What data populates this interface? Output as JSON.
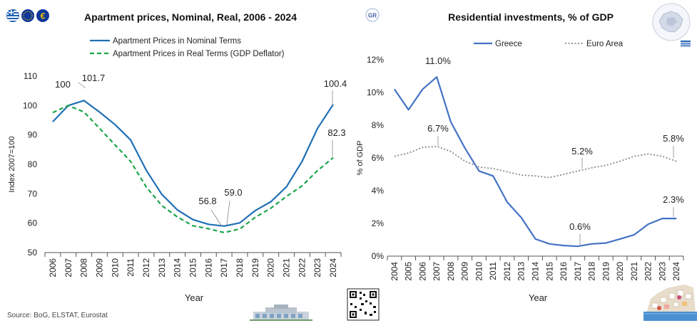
{
  "left_title": "Apartment prices, Nominal, Real, 2006 - 2024",
  "right_title": "Residential investments, % of GDP",
  "right_badge": "GR",
  "source": "Source: BoG, ELSTAT, Eurostat",
  "logos": [
    "greece-flag-circle-icon",
    "ecb-logo-icon",
    "euro-logo-icon"
  ],
  "colors": {
    "blue": "#1f6fb5",
    "green": "#1aa54a",
    "gray": "#8a8a8a",
    "line_blue": "#4472c4",
    "title": "#111111"
  },
  "chart_data": [
    {
      "type": "line",
      "title": "Apartment prices, Nominal, Real, 2006 - 2024",
      "xlabel": "Year",
      "ylabel": "Index 2007=100",
      "ylim": [
        50,
        110
      ],
      "yticks": [
        "50",
        "60",
        "70",
        "80",
        "90",
        "100",
        "110"
      ],
      "categories": [
        "2006",
        "2007",
        "2008",
        "2009",
        "2010",
        "2011",
        "2012",
        "2013",
        "2014",
        "2015",
        "2016",
        "2017",
        "2018",
        "2019",
        "2020",
        "2021",
        "2022",
        "2023",
        "2024"
      ],
      "legend_position": "top-center",
      "grid": false,
      "series": [
        {
          "name": "Apartment Prices in Nominal Terms",
          "style": "solid",
          "color": "#1f6fb5",
          "values": [
            94.5,
            100,
            101.7,
            97.8,
            93.5,
            88.3,
            78.0,
            69.8,
            64.5,
            61.2,
            59.6,
            59.0,
            60.1,
            64.3,
            67.3,
            72.4,
            81.0,
            92.3,
            100.4
          ]
        },
        {
          "name": "Apartment Prices in Real Terms (GDP Deflator)",
          "style": "dashed",
          "color": "#1aa54a",
          "values": [
            97.6,
            100,
            97.8,
            92.3,
            86.6,
            81.0,
            72.3,
            66.0,
            62.1,
            59.1,
            58.1,
            56.8,
            58.0,
            62.0,
            65.1,
            69.1,
            72.7,
            77.9,
            82.3
          ]
        }
      ],
      "annotations": [
        {
          "text": "100",
          "x": "2007",
          "y": 100
        },
        {
          "text": "101.7",
          "x": "2008",
          "y": 101.7
        },
        {
          "text": "56.8",
          "x": "2017",
          "y": 56.8
        },
        {
          "text": "59.0",
          "x": "2017",
          "y": 59.0
        },
        {
          "text": "100.4",
          "x": "2024",
          "y": 100.4
        },
        {
          "text": "82.3",
          "x": "2024",
          "y": 82.3
        }
      ]
    },
    {
      "type": "line",
      "title": "Residential investments, % of GDP",
      "xlabel": "Year",
      "ylabel": "% of GDP",
      "ylim": [
        0,
        12
      ],
      "yticks": [
        "0%",
        "2%",
        "4%",
        "6%",
        "8%",
        "10%",
        "12%"
      ],
      "categories": [
        "2004",
        "2005",
        "2006",
        "2007",
        "2008",
        "2009",
        "2010",
        "2011",
        "2012",
        "2013",
        "2014",
        "2015",
        "2016",
        "2017",
        "2018",
        "2019",
        "2020",
        "2021",
        "2022",
        "2023",
        "2024"
      ],
      "legend_position": "top-center",
      "grid": false,
      "series": [
        {
          "name": "Greece",
          "style": "solid",
          "color": "#4472c4",
          "values": [
            10.2,
            8.95,
            10.2,
            10.95,
            8.2,
            6.6,
            5.2,
            4.9,
            3.3,
            2.35,
            1.05,
            0.75,
            0.65,
            0.6,
            0.75,
            0.8,
            1.05,
            1.3,
            1.95,
            2.3,
            2.3
          ]
        },
        {
          "name": "Euro Area",
          "style": "dotted",
          "color": "#8a8a8a",
          "values": [
            6.1,
            6.3,
            6.65,
            6.7,
            6.4,
            5.8,
            5.45,
            5.35,
            5.15,
            4.95,
            4.9,
            4.8,
            5.0,
            5.2,
            5.4,
            5.55,
            5.8,
            6.1,
            6.25,
            6.1,
            5.8
          ]
        }
      ],
      "annotations": [
        {
          "text": "11.0%",
          "x": "2007",
          "y": 10.95
        },
        {
          "text": "6.7%",
          "x": "2007",
          "y": 6.7
        },
        {
          "text": "5.2%",
          "x": "2017",
          "y": 5.2
        },
        {
          "text": "0.6%",
          "x": "2017",
          "y": 0.6
        },
        {
          "text": "5.8%",
          "x": "2024",
          "y": 5.8
        },
        {
          "text": "2.3%",
          "x": "2024",
          "y": 2.3
        }
      ]
    }
  ]
}
